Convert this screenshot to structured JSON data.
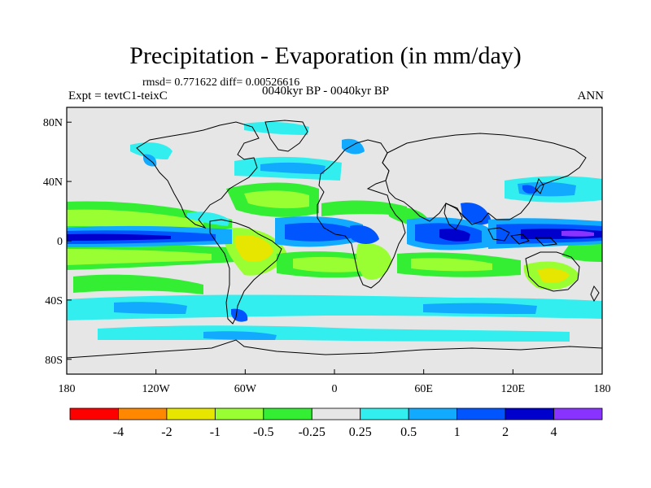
{
  "title": "Precipitation - Evaporation (in mm/day)",
  "stats_line": "rmsd= 0.771622 diff= 0.00526616",
  "experiment_label": "Expt = tevtC1-teixC",
  "period_label": "0040kyr BP - 0040kyr BP",
  "season_label": "ANN",
  "lat_ticks": [
    {
      "label": "80N",
      "lat": 80
    },
    {
      "label": "40N",
      "lat": 40
    },
    {
      "label": "0",
      "lat": 0
    },
    {
      "label": "40S",
      "lat": -40
    },
    {
      "label": "80S",
      "lat": -80
    }
  ],
  "lon_ticks": [
    {
      "label": "180",
      "lon": -180
    },
    {
      "label": "120W",
      "lon": -120
    },
    {
      "label": "60W",
      "lon": -60
    },
    {
      "label": "0",
      "lon": 0
    },
    {
      "label": "60E",
      "lon": 60
    },
    {
      "label": "120E",
      "lon": 120
    },
    {
      "label": "180",
      "lon": 180
    }
  ],
  "colorbar": {
    "colors": [
      "#ff0000",
      "#ff8800",
      "#e6e600",
      "#99ff33",
      "#33ee33",
      "#e6e6e6",
      "#33eeee",
      "#11aaff",
      "#0055ff",
      "#0000cc",
      "#8833ff"
    ],
    "labels": [
      "-4",
      "-2",
      "-1",
      "-0.5",
      "-0.25",
      "0.25",
      "0.5",
      "1",
      "2",
      "4"
    ]
  },
  "colors": {
    "background": "#e6e6e6",
    "coast": "#000000"
  }
}
